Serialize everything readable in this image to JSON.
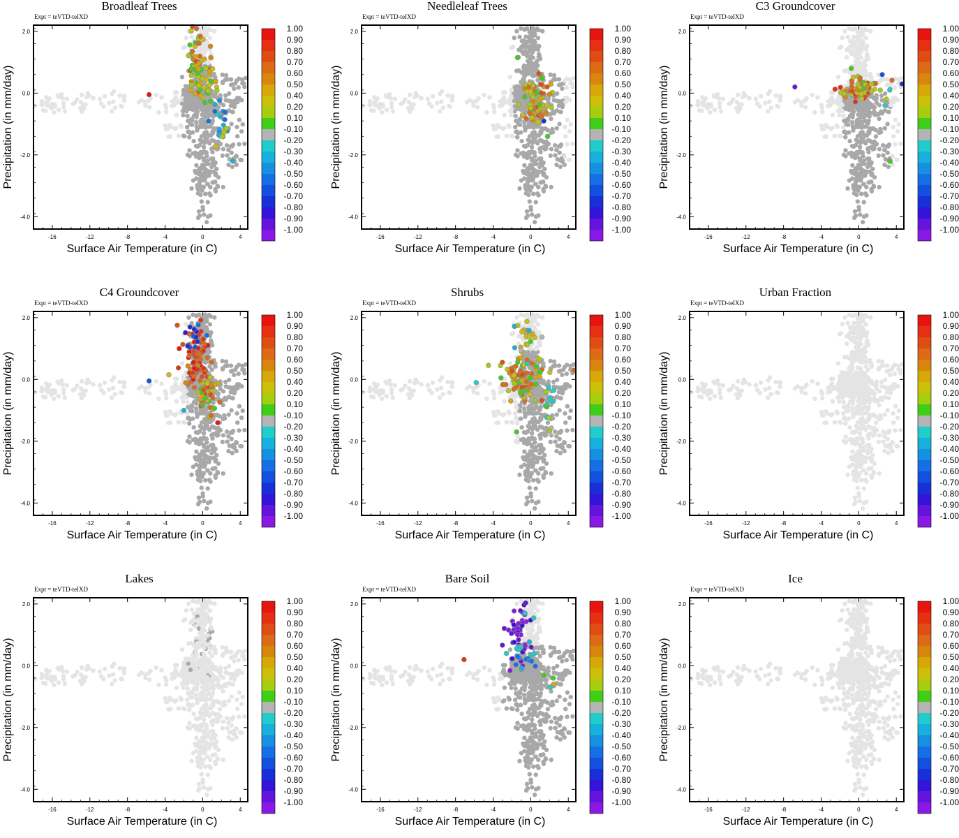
{
  "figure": {
    "experiment_label": "Expt = teVTD-teIXD",
    "xlabel": "Surface Air Temperature (in C)",
    "ylabel": "Precipitation (in mm/day)",
    "xticks": [
      -16,
      -12,
      -8,
      -4,
      0,
      4
    ],
    "yticks": [
      2.0,
      0.0,
      -2.0,
      -4.0
    ],
    "ytick_labels": [
      "2.0",
      "0.0",
      "-2.0",
      "-4.0"
    ],
    "xlim": [
      -18,
      4.8
    ],
    "ylim": [
      -4.4,
      2.2
    ],
    "colorbar": {
      "labels": [
        "1.00",
        "0.90",
        "0.80",
        "0.70",
        "0.60",
        "0.50",
        "0.40",
        "0.20",
        "0.10",
        "-0.10",
        "-0.20",
        "-0.30",
        "-0.40",
        "-0.50",
        "-0.60",
        "-0.70",
        "-0.80",
        "-0.90",
        "-1.00"
      ],
      "colors": [
        "#e8140f",
        "#e63012",
        "#e04d14",
        "#dc6a16",
        "#d8860c",
        "#d8a808",
        "#ccc00a",
        "#a6cd10",
        "#3fcf18",
        "#b4b4b4",
        "#20cccc",
        "#18b0dc",
        "#1690e0",
        "#1470e4",
        "#1450e0",
        "#1830d8",
        "#3414d8",
        "#6414dc",
        "#8a18e6"
      ]
    },
    "background_colors": {
      "light": "#e4e4e4",
      "dark": "#a8a8a8"
    }
  },
  "chart_data": [
    {
      "type": "scatter",
      "title": "Broadleaf Trees",
      "pattern": "broadleaf"
    },
    {
      "type": "scatter",
      "title": "Needleleaf Trees",
      "pattern": "needleleaf"
    },
    {
      "type": "scatter",
      "title": "C3 Groundcover",
      "pattern": "c3"
    },
    {
      "type": "scatter",
      "title": "C4 Groundcover",
      "pattern": "c4"
    },
    {
      "type": "scatter",
      "title": "Shrubs",
      "pattern": "shrubs"
    },
    {
      "type": "scatter",
      "title": "Urban Fraction",
      "pattern": "none"
    },
    {
      "type": "scatter",
      "title": "Lakes",
      "pattern": "lakes"
    },
    {
      "type": "scatter",
      "title": "Bare Soil",
      "pattern": "baresoil"
    },
    {
      "type": "scatter",
      "title": "Ice",
      "pattern": "none"
    }
  ]
}
